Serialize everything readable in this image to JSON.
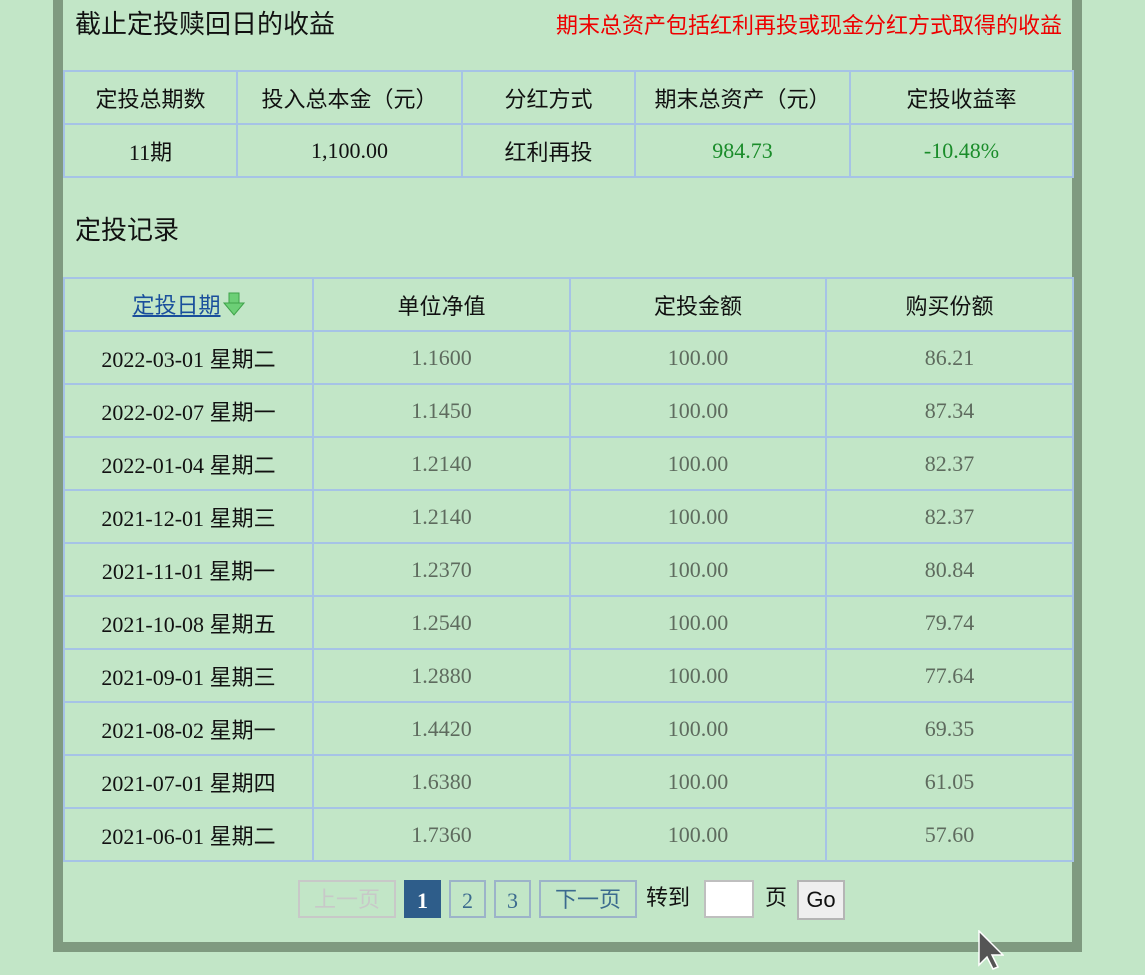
{
  "summary": {
    "title": "截止定投赎回日的收益",
    "note": "期末总资产包括红利再投或现金分红方式取得的收益",
    "headers": [
      "定投总期数",
      "投入总本金（元）",
      "分红方式",
      "期末总资产（元）",
      "定投收益率"
    ],
    "values": [
      "11期",
      "1,100.00",
      "红利再投",
      "984.73",
      "-10.48%"
    ]
  },
  "records": {
    "title": "定投记录",
    "headers": {
      "date": "定投日期",
      "nav": "单位净值",
      "amount": "定投金额",
      "shares": "购买份额"
    },
    "rows": [
      {
        "date": "2022-03-01",
        "weekday": "星期二",
        "nav": "1.1600",
        "amount": "100.00",
        "shares": "86.21"
      },
      {
        "date": "2022-02-07",
        "weekday": "星期一",
        "nav": "1.1450",
        "amount": "100.00",
        "shares": "87.34"
      },
      {
        "date": "2022-01-04",
        "weekday": "星期二",
        "nav": "1.2140",
        "amount": "100.00",
        "shares": "82.37"
      },
      {
        "date": "2021-12-01",
        "weekday": "星期三",
        "nav": "1.2140",
        "amount": "100.00",
        "shares": "82.37"
      },
      {
        "date": "2021-11-01",
        "weekday": "星期一",
        "nav": "1.2370",
        "amount": "100.00",
        "shares": "80.84"
      },
      {
        "date": "2021-10-08",
        "weekday": "星期五",
        "nav": "1.2540",
        "amount": "100.00",
        "shares": "79.74"
      },
      {
        "date": "2021-09-01",
        "weekday": "星期三",
        "nav": "1.2880",
        "amount": "100.00",
        "shares": "77.64"
      },
      {
        "date": "2021-08-02",
        "weekday": "星期一",
        "nav": "1.4420",
        "amount": "100.00",
        "shares": "69.35"
      },
      {
        "date": "2021-07-01",
        "weekday": "星期四",
        "nav": "1.6380",
        "amount": "100.00",
        "shares": "61.05"
      },
      {
        "date": "2021-06-01",
        "weekday": "星期二",
        "nav": "1.7360",
        "amount": "100.00",
        "shares": "57.60"
      }
    ]
  },
  "pager": {
    "prev": "上一页",
    "pages": [
      "1",
      "2",
      "3"
    ],
    "current": "1",
    "next": "下一页",
    "goto_label": "转到",
    "page_unit": "页",
    "go": "Go",
    "goto_value": ""
  },
  "icons": {
    "sort": "sort-down-arrow-icon",
    "cursor": "mouse-pointer-icon"
  },
  "colors": {
    "background": "#c2e6c7",
    "border": "#a6c3e6",
    "note_red": "#ee0000",
    "gain_green": "#1a8c2a",
    "current_page": "#2e5d8a"
  }
}
